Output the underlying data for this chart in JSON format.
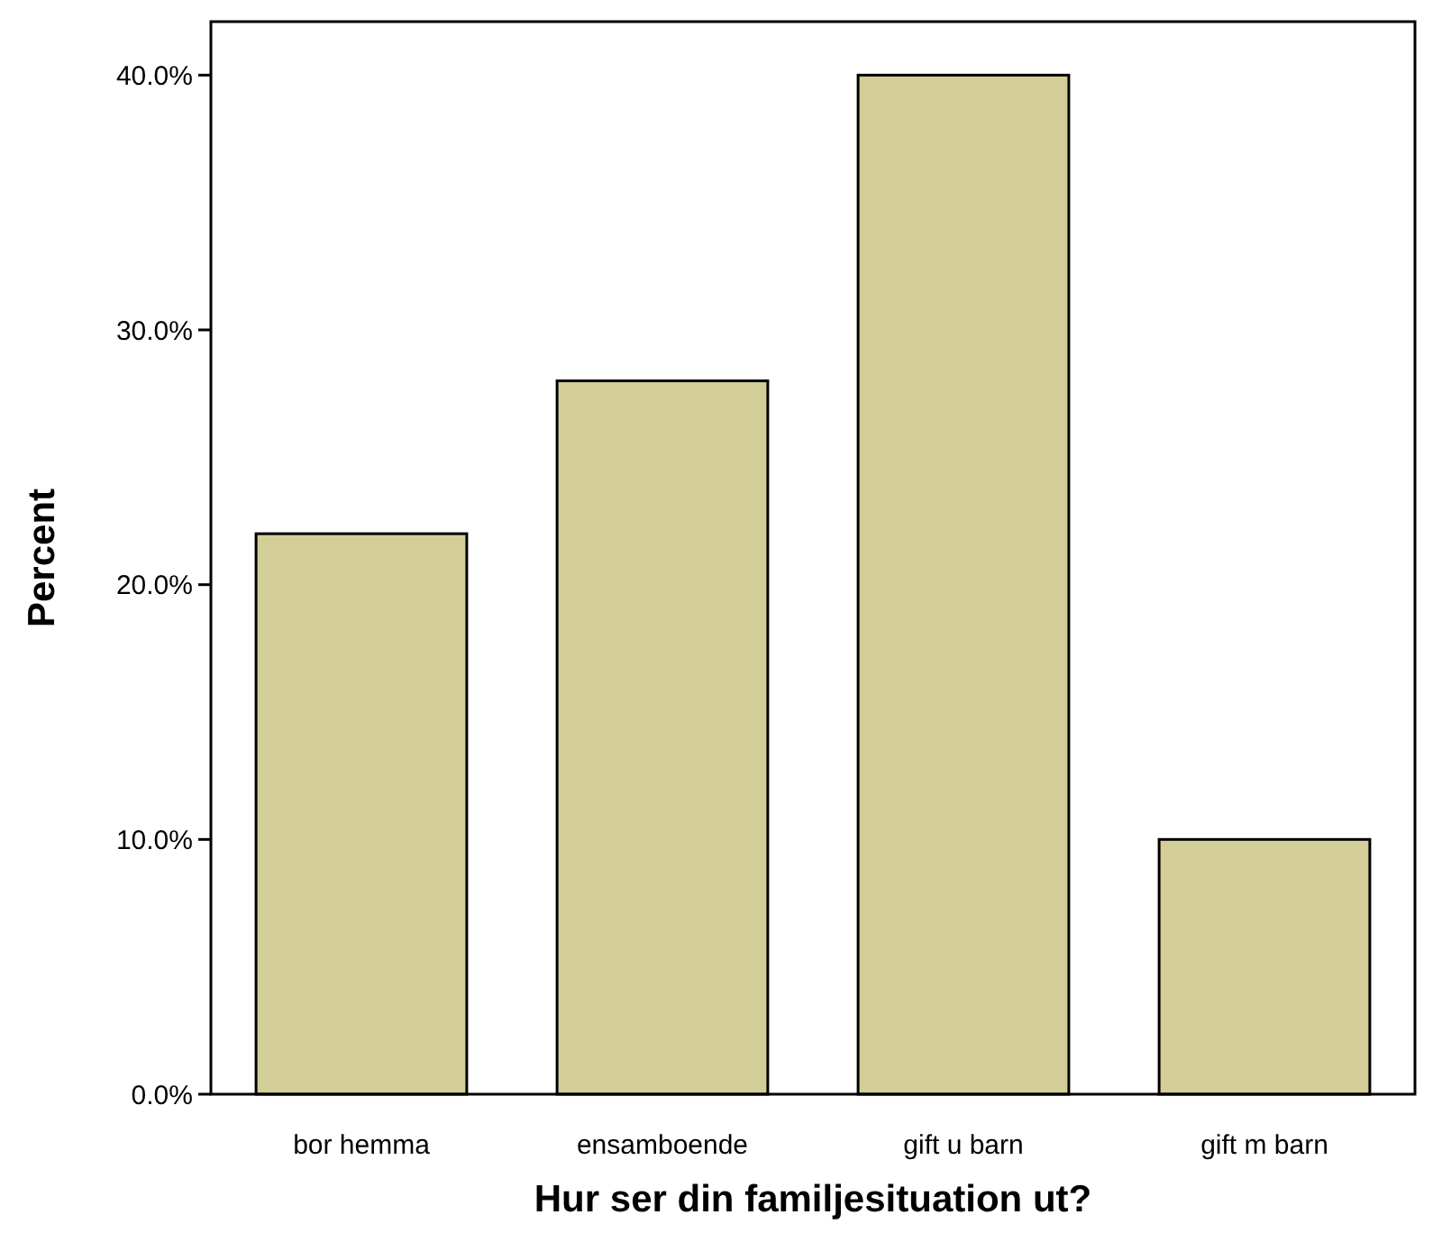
{
  "chart_data": {
    "type": "bar",
    "xlabel": "Hur ser din familjesituation ut?",
    "ylabel": "Percent",
    "categories": [
      "bor hemma",
      "ensamboende",
      "gift u barn",
      "gift m barn"
    ],
    "values": [
      22,
      28,
      40,
      10
    ],
    "color": "#d3ce97",
    "ylim": [
      0,
      42.1
    ],
    "yticks": [
      {
        "value": 0,
        "label": "0.0%"
      },
      {
        "value": 10,
        "label": "10.0%"
      },
      {
        "value": 20,
        "label": "20.0%"
      },
      {
        "value": 30,
        "label": "30.0%"
      },
      {
        "value": 40,
        "label": "40.0%"
      }
    ],
    "grid": false
  }
}
